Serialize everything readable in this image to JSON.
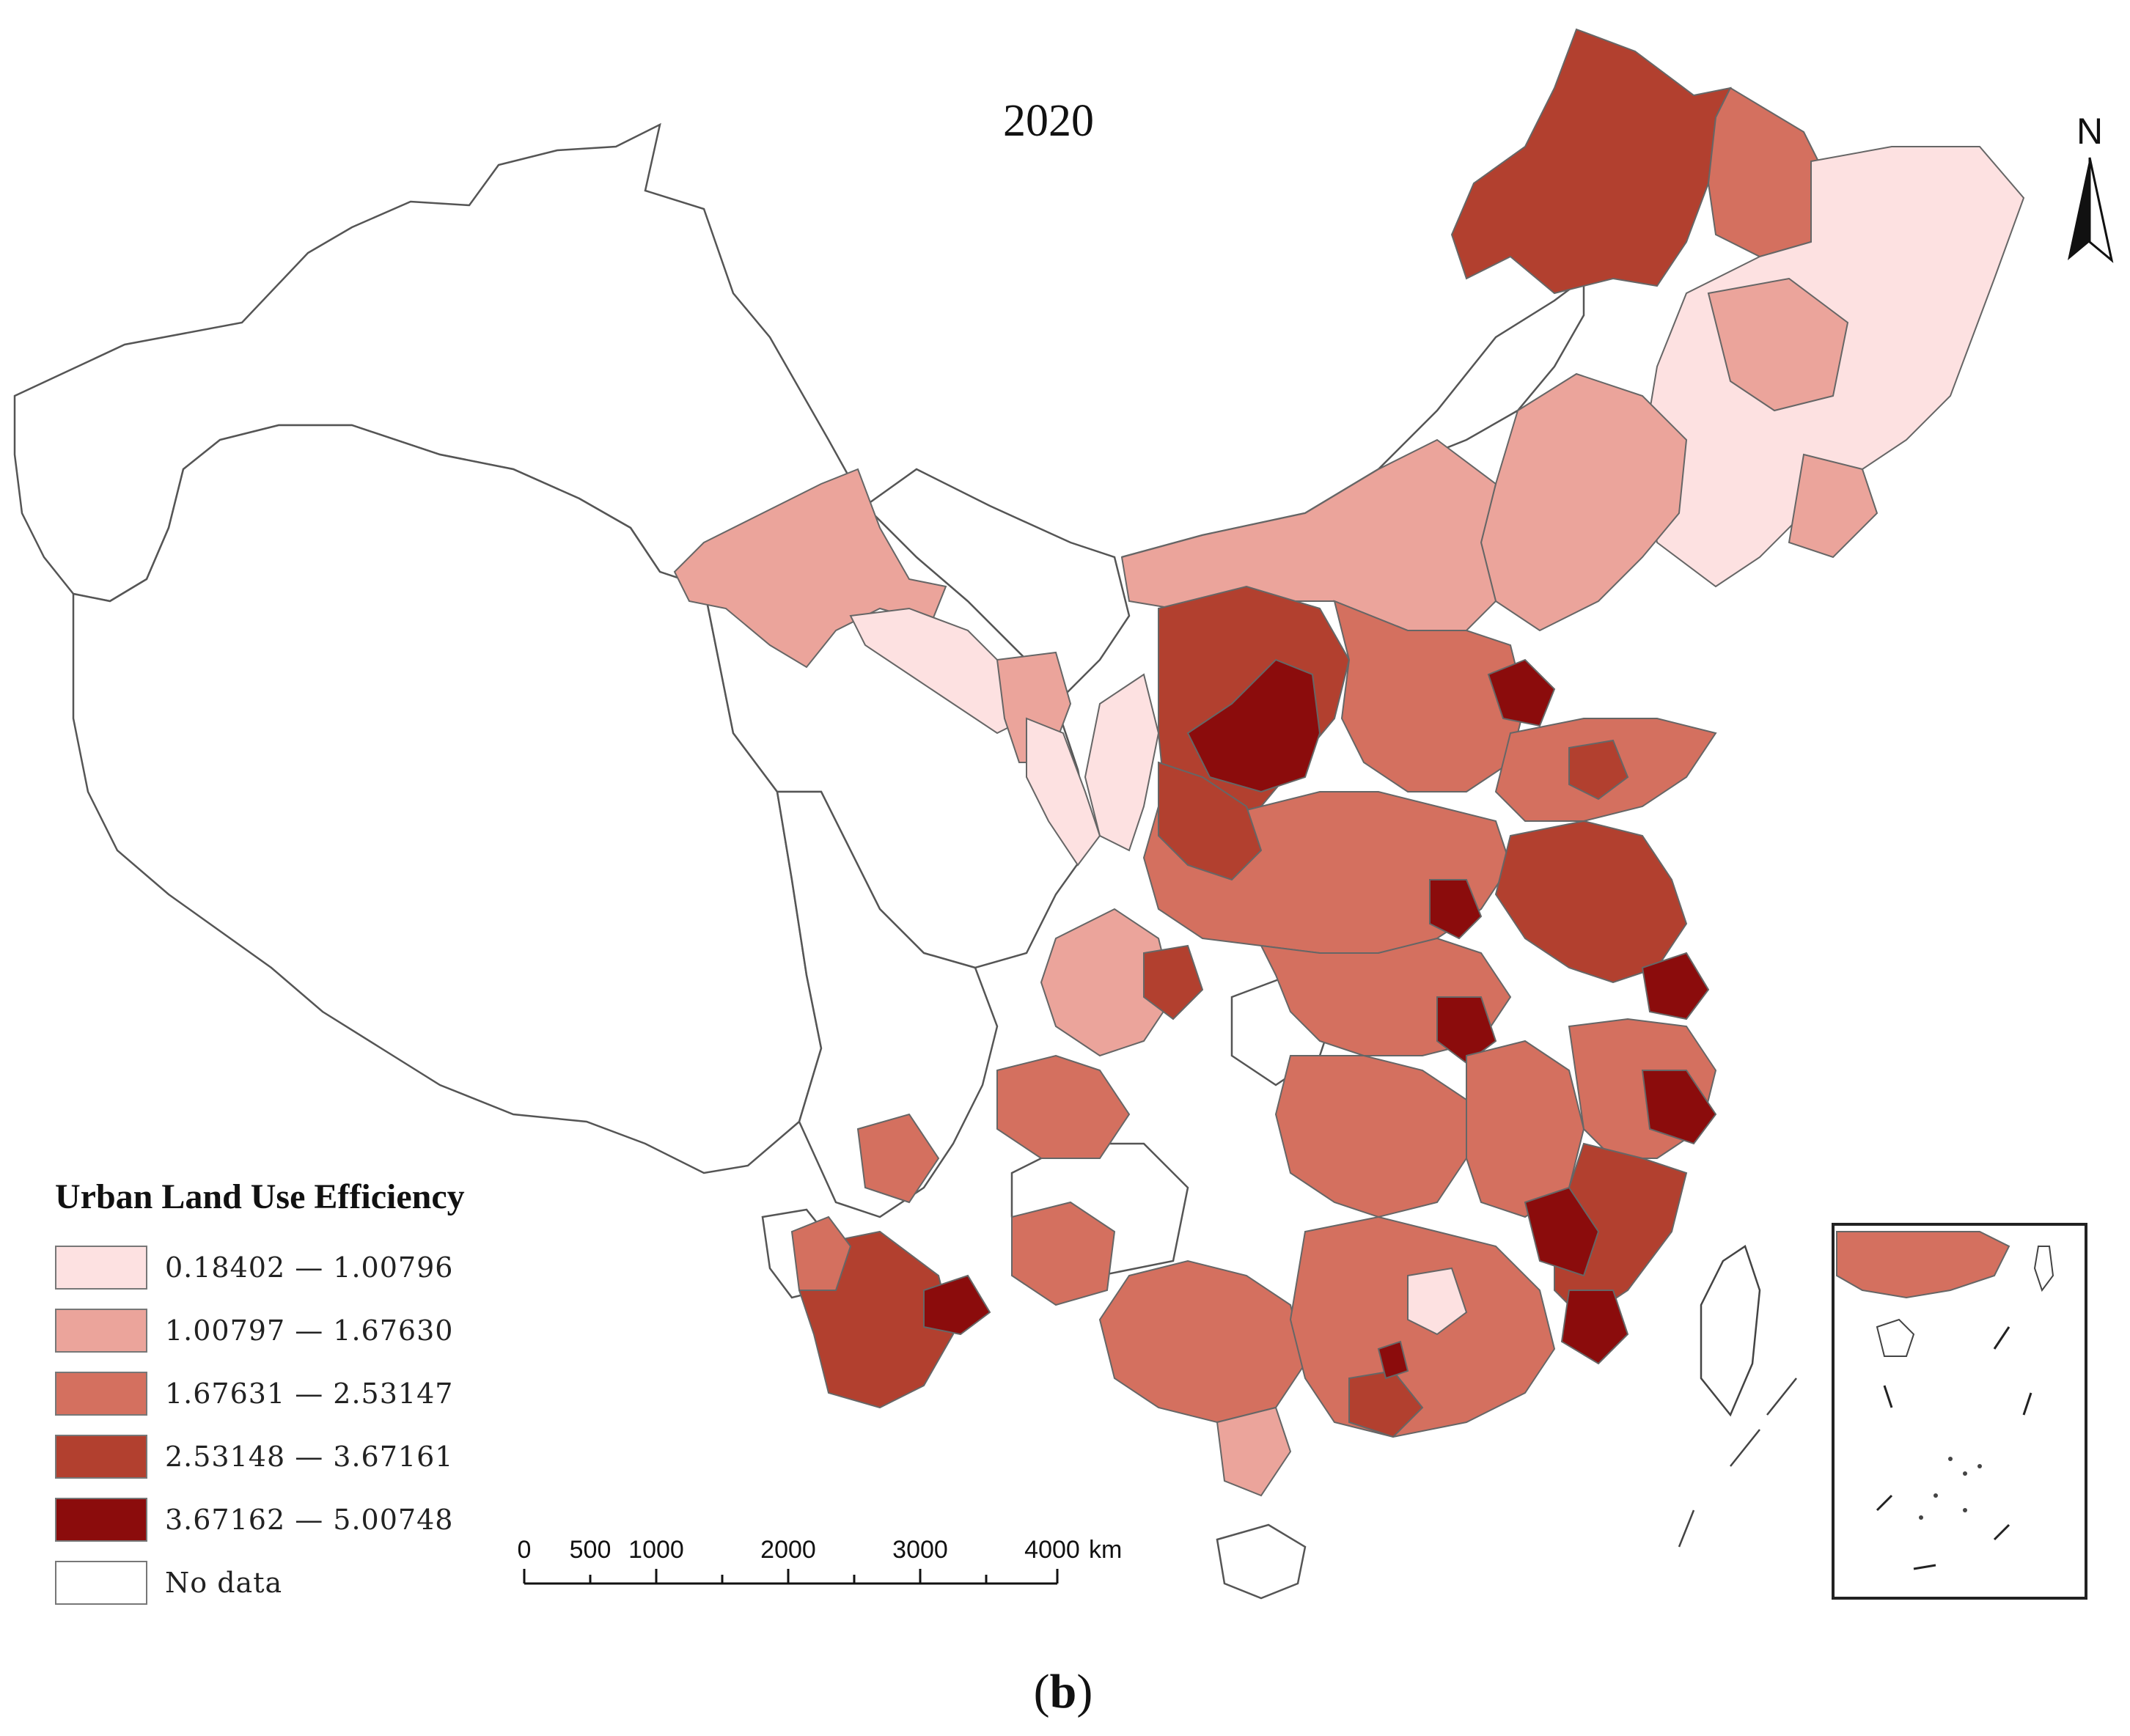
{
  "title": "2020",
  "north_label": "N",
  "legend": {
    "title": "Urban Land Use Efficiency",
    "items": [
      {
        "label": "0.18402 — 1.00796",
        "color": "#fde1e1"
      },
      {
        "label": "1.00797 — 1.67630",
        "color": "#eba49b"
      },
      {
        "label": "1.67631 — 2.53147",
        "color": "#d4705f"
      },
      {
        "label": "2.53148 — 3.67161",
        "color": "#b2402f"
      },
      {
        "label": "3.67162 — 5.00748",
        "color": "#8b0c0c"
      },
      {
        "label": "No data",
        "color": "#ffffff"
      }
    ]
  },
  "scale_bar": {
    "ticks": [
      "0",
      "500",
      "1000",
      "2000",
      "3000",
      "4000"
    ],
    "unit": "km"
  },
  "panel_label": "b"
}
